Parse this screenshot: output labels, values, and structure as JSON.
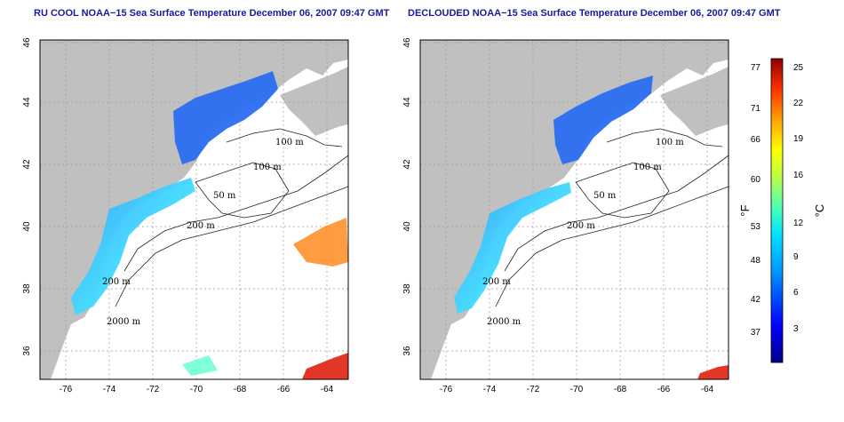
{
  "maps": [
    {
      "title": "RU COOL NOAA−15 Sea Surface Temperature December 06, 2007 09:47 GMT",
      "x_ticks": [
        "-76",
        "-74",
        "-72",
        "-70",
        "-68",
        "-66",
        "-64"
      ],
      "y_ticks": [
        "46",
        "44",
        "42",
        "40",
        "38",
        "36"
      ],
      "contour_labels": [
        "100 m",
        "100 m",
        "50 m",
        "200 m",
        "200 m",
        "2000 m"
      ]
    },
    {
      "title": "DECLOUDED NOAA−15 Sea Surface Temperature December 06, 2007 09:47 GMT",
      "x_ticks": [
        "-76",
        "-74",
        "-72",
        "-70",
        "-68",
        "-66",
        "-64"
      ],
      "y_ticks": [
        "46",
        "44",
        "42",
        "40",
        "38",
        "36"
      ],
      "contour_labels": [
        "100 m",
        "100 m",
        "50 m",
        "200 m",
        "200 m",
        "2000 m"
      ]
    }
  ],
  "colorbar": {
    "fahrenheit_labels": [
      "77",
      "71",
      "66",
      "60",
      "53",
      "48",
      "42",
      "37"
    ],
    "celsius_labels": [
      "25",
      "22",
      "19",
      "16",
      "12",
      "9",
      "6",
      "3"
    ],
    "fahrenheit_unit": "°F",
    "celsius_unit": "°C"
  },
  "colors": {
    "title": "#1a1a9a",
    "land": "#c0c0c0",
    "water": "#ffffff"
  }
}
